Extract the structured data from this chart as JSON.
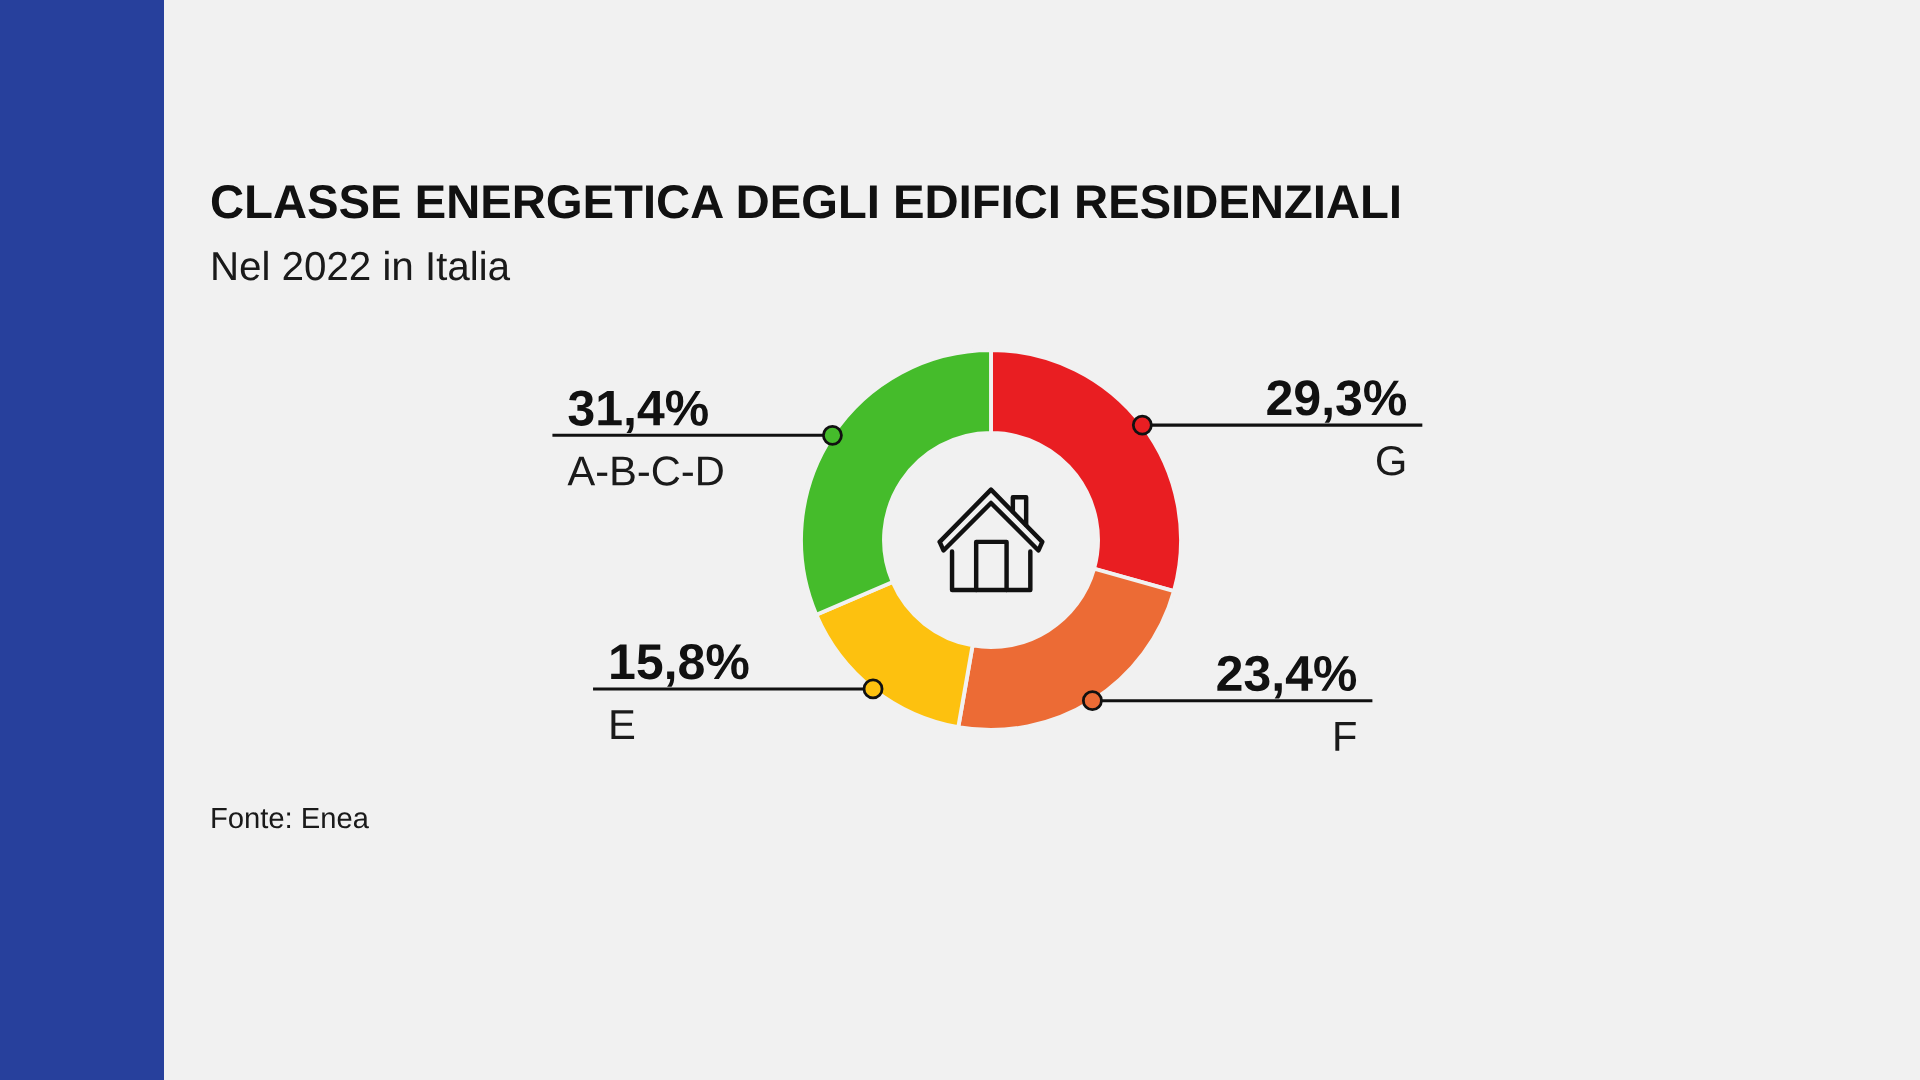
{
  "chart_data": {
    "type": "donut",
    "title": "CLASSE ENERGETICA DEGLI EDIFICI RESIDENZIALI",
    "subtitle": "Nel 2022 in Italia",
    "categories": [
      "G",
      "F",
      "E",
      "A-B-C-D"
    ],
    "values": [
      29.3,
      23.4,
      15.8,
      31.4
    ],
    "colors": [
      "#e91e22",
      "#ec6b35",
      "#fdc10f",
      "#45bc2b"
    ],
    "value_labels": [
      "29,3%",
      "23,4%",
      "15,8%",
      "31,4%"
    ],
    "annotations": [
      "Fonte: Enea"
    ]
  }
}
